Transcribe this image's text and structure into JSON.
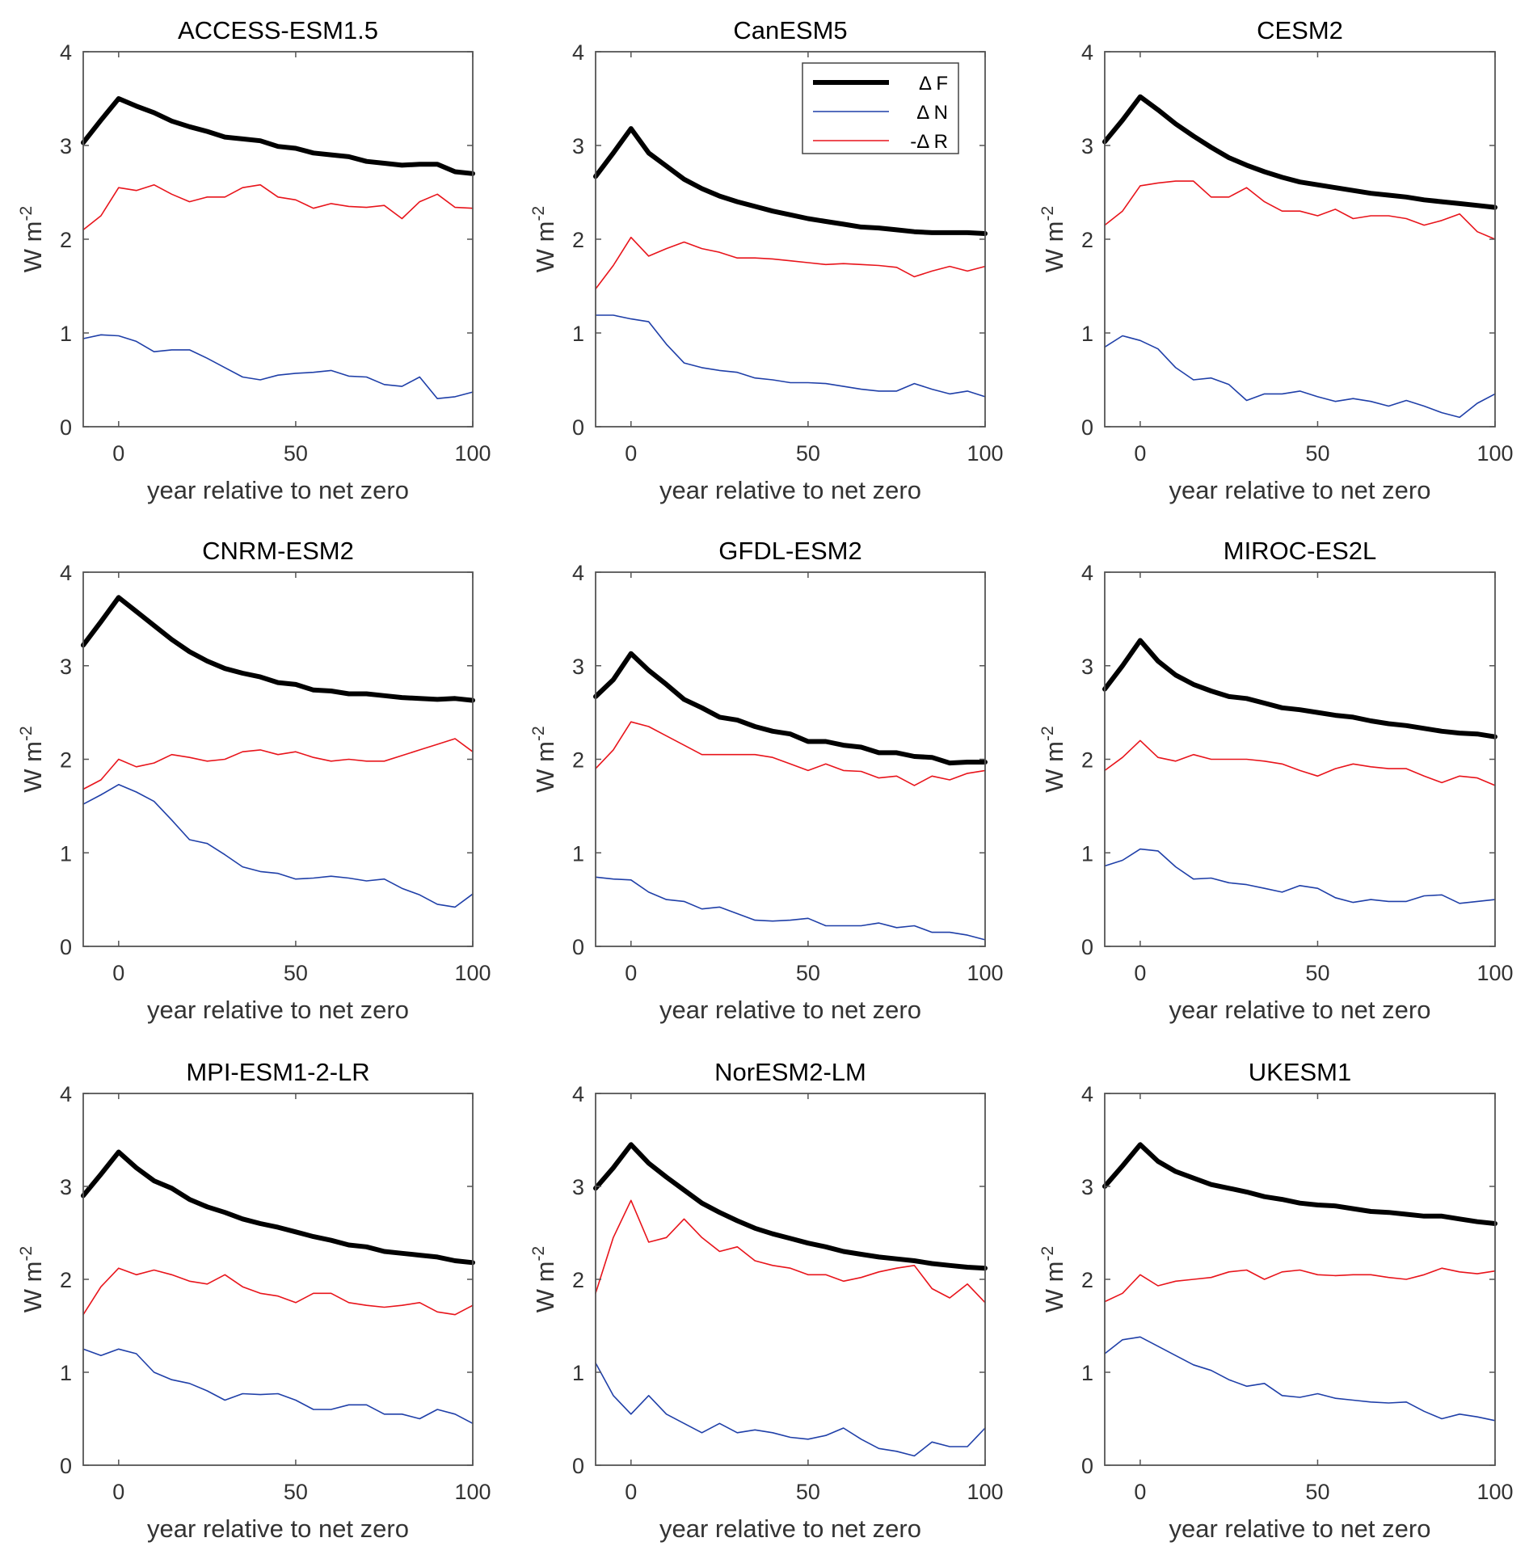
{
  "chart_data": {
    "type": "line",
    "layout": "3x3 grid of small multiples",
    "shared": {
      "xlabel": "year relative to net zero",
      "ylabel": "W m",
      "ylabel_superscript": "-2",
      "xlim": [
        -10,
        100
      ],
      "ylim": [
        0,
        4
      ],
      "xticks": [
        0,
        50,
        100
      ],
      "yticks": [
        0,
        1,
        2,
        3,
        4
      ],
      "grid": false
    },
    "legend": {
      "panel": 1,
      "placement": "top-right",
      "entries": [
        {
          "key": "F",
          "label": "Δ F",
          "color": "#000000",
          "weight": "thick"
        },
        {
          "key": "N",
          "label": "Δ N",
          "color": "#1f3fa8",
          "weight": "thin"
        },
        {
          "key": "R",
          "label": "-Δ R",
          "color": "#e8141b",
          "weight": "thin"
        }
      ]
    },
    "x": [
      -10,
      -5,
      0,
      5,
      10,
      15,
      20,
      25,
      30,
      35,
      40,
      45,
      50,
      55,
      60,
      65,
      70,
      75,
      80,
      85,
      90,
      95,
      100
    ],
    "panels": [
      {
        "title": "ACCESS-ESM1.5",
        "series": {
          "F": [
            3.03,
            3.27,
            3.5,
            3.42,
            3.35,
            3.26,
            3.2,
            3.15,
            3.09,
            3.07,
            3.05,
            2.99,
            2.97,
            2.92,
            2.9,
            2.88,
            2.83,
            2.81,
            2.79,
            2.8,
            2.8,
            2.72,
            2.7
          ],
          "N": [
            0.94,
            0.98,
            0.97,
            0.91,
            0.8,
            0.82,
            0.82,
            0.73,
            0.63,
            0.53,
            0.5,
            0.55,
            0.57,
            0.58,
            0.6,
            0.54,
            0.53,
            0.45,
            0.43,
            0.53,
            0.3,
            0.32,
            0.37
          ],
          "R": [
            2.1,
            2.25,
            2.55,
            2.52,
            2.58,
            2.48,
            2.4,
            2.45,
            2.45,
            2.55,
            2.58,
            2.45,
            2.42,
            2.33,
            2.38,
            2.35,
            2.34,
            2.36,
            2.22,
            2.4,
            2.48,
            2.34,
            2.33
          ]
        }
      },
      {
        "title": "CanESM5",
        "series": {
          "F": [
            2.67,
            2.92,
            3.18,
            2.92,
            2.78,
            2.64,
            2.54,
            2.46,
            2.4,
            2.35,
            2.3,
            2.26,
            2.22,
            2.19,
            2.16,
            2.13,
            2.12,
            2.1,
            2.08,
            2.07,
            2.07,
            2.07,
            2.06
          ],
          "N": [
            1.19,
            1.19,
            1.15,
            1.12,
            0.88,
            0.68,
            0.63,
            0.6,
            0.58,
            0.52,
            0.5,
            0.47,
            0.47,
            0.46,
            0.43,
            0.4,
            0.38,
            0.38,
            0.46,
            0.4,
            0.35,
            0.38,
            0.32
          ],
          "R": [
            1.47,
            1.72,
            2.02,
            1.82,
            1.9,
            1.97,
            1.9,
            1.86,
            1.8,
            1.8,
            1.79,
            1.77,
            1.75,
            1.73,
            1.74,
            1.73,
            1.72,
            1.7,
            1.6,
            1.66,
            1.71,
            1.66,
            1.71
          ]
        }
      },
      {
        "title": "CESM2",
        "series": {
          "F": [
            3.04,
            3.27,
            3.52,
            3.38,
            3.23,
            3.1,
            2.98,
            2.87,
            2.79,
            2.72,
            2.66,
            2.61,
            2.58,
            2.55,
            2.52,
            2.49,
            2.47,
            2.45,
            2.42,
            2.4,
            2.38,
            2.36,
            2.34
          ],
          "N": [
            0.85,
            0.97,
            0.92,
            0.83,
            0.63,
            0.5,
            0.52,
            0.45,
            0.28,
            0.35,
            0.35,
            0.38,
            0.32,
            0.27,
            0.3,
            0.27,
            0.22,
            0.28,
            0.22,
            0.15,
            0.1,
            0.25,
            0.35
          ],
          "R": [
            2.15,
            2.3,
            2.57,
            2.6,
            2.62,
            2.62,
            2.45,
            2.45,
            2.55,
            2.4,
            2.3,
            2.3,
            2.25,
            2.32,
            2.22,
            2.25,
            2.25,
            2.22,
            2.15,
            2.2,
            2.27,
            2.08,
            2.0
          ]
        }
      },
      {
        "title": "CNRM-ESM2",
        "series": {
          "F": [
            3.22,
            3.47,
            3.73,
            3.58,
            3.43,
            3.28,
            3.15,
            3.05,
            2.97,
            2.92,
            2.88,
            2.82,
            2.8,
            2.74,
            2.73,
            2.7,
            2.7,
            2.68,
            2.66,
            2.65,
            2.64,
            2.65,
            2.63
          ],
          "N": [
            1.52,
            1.62,
            1.73,
            1.65,
            1.55,
            1.35,
            1.14,
            1.1,
            0.98,
            0.85,
            0.8,
            0.78,
            0.72,
            0.73,
            0.75,
            0.73,
            0.7,
            0.72,
            0.62,
            0.55,
            0.45,
            0.42,
            0.56
          ],
          "R": [
            1.68,
            1.78,
            2.0,
            1.92,
            1.96,
            2.05,
            2.02,
            1.98,
            2.0,
            2.08,
            2.1,
            2.05,
            2.08,
            2.02,
            1.98,
            2.0,
            1.98,
            1.98,
            2.04,
            2.1,
            2.16,
            2.22,
            2.08
          ]
        }
      },
      {
        "title": "GFDL-ESM2",
        "series": {
          "F": [
            2.67,
            2.85,
            3.13,
            2.95,
            2.8,
            2.64,
            2.55,
            2.45,
            2.42,
            2.35,
            2.3,
            2.27,
            2.19,
            2.19,
            2.15,
            2.13,
            2.07,
            2.07,
            2.03,
            2.02,
            1.96,
            1.97,
            1.97
          ],
          "N": [
            0.74,
            0.72,
            0.71,
            0.58,
            0.5,
            0.48,
            0.4,
            0.42,
            0.35,
            0.28,
            0.27,
            0.28,
            0.3,
            0.22,
            0.22,
            0.22,
            0.25,
            0.2,
            0.22,
            0.15,
            0.15,
            0.12,
            0.07
          ],
          "R": [
            1.9,
            2.1,
            2.4,
            2.35,
            2.25,
            2.15,
            2.05,
            2.05,
            2.05,
            2.05,
            2.02,
            1.95,
            1.88,
            1.95,
            1.88,
            1.87,
            1.8,
            1.82,
            1.72,
            1.82,
            1.78,
            1.85,
            1.88
          ]
        }
      },
      {
        "title": "MIROC-ES2L",
        "series": {
          "F": [
            2.75,
            3.0,
            3.27,
            3.05,
            2.9,
            2.8,
            2.73,
            2.67,
            2.65,
            2.6,
            2.55,
            2.53,
            2.5,
            2.47,
            2.45,
            2.41,
            2.38,
            2.36,
            2.33,
            2.3,
            2.28,
            2.27,
            2.24
          ],
          "N": [
            0.86,
            0.92,
            1.04,
            1.02,
            0.85,
            0.72,
            0.73,
            0.68,
            0.66,
            0.62,
            0.58,
            0.65,
            0.62,
            0.52,
            0.47,
            0.5,
            0.48,
            0.48,
            0.54,
            0.55,
            0.46,
            0.48,
            0.5
          ],
          "R": [
            1.88,
            2.02,
            2.2,
            2.02,
            1.98,
            2.05,
            2.0,
            2.0,
            2.0,
            1.98,
            1.95,
            1.88,
            1.82,
            1.9,
            1.95,
            1.92,
            1.9,
            1.9,
            1.82,
            1.75,
            1.82,
            1.8,
            1.72
          ]
        }
      },
      {
        "title": "MPI-ESM1-2-LR",
        "series": {
          "F": [
            2.9,
            3.13,
            3.37,
            3.2,
            3.06,
            2.98,
            2.86,
            2.78,
            2.72,
            2.65,
            2.6,
            2.56,
            2.51,
            2.46,
            2.42,
            2.37,
            2.35,
            2.3,
            2.28,
            2.26,
            2.24,
            2.2,
            2.18
          ],
          "N": [
            1.25,
            1.18,
            1.25,
            1.2,
            1.0,
            0.92,
            0.88,
            0.8,
            0.7,
            0.77,
            0.76,
            0.77,
            0.7,
            0.6,
            0.6,
            0.65,
            0.65,
            0.55,
            0.55,
            0.5,
            0.6,
            0.55,
            0.45
          ],
          "R": [
            1.62,
            1.92,
            2.12,
            2.05,
            2.1,
            2.05,
            1.98,
            1.95,
            2.05,
            1.92,
            1.85,
            1.82,
            1.75,
            1.85,
            1.85,
            1.75,
            1.72,
            1.7,
            1.72,
            1.75,
            1.65,
            1.62,
            1.72
          ]
        }
      },
      {
        "title": "NorESM2-LM",
        "series": {
          "F": [
            2.98,
            3.2,
            3.45,
            3.25,
            3.1,
            2.96,
            2.82,
            2.72,
            2.63,
            2.55,
            2.49,
            2.44,
            2.39,
            2.35,
            2.3,
            2.27,
            2.24,
            2.22,
            2.2,
            2.17,
            2.15,
            2.13,
            2.12
          ],
          "N": [
            1.1,
            0.75,
            0.55,
            0.75,
            0.55,
            0.45,
            0.35,
            0.45,
            0.35,
            0.38,
            0.35,
            0.3,
            0.28,
            0.32,
            0.4,
            0.28,
            0.18,
            0.15,
            0.1,
            0.25,
            0.2,
            0.2,
            0.4
          ],
          "R": [
            1.85,
            2.45,
            2.85,
            2.4,
            2.45,
            2.65,
            2.45,
            2.3,
            2.35,
            2.2,
            2.15,
            2.12,
            2.05,
            2.05,
            1.98,
            2.02,
            2.08,
            2.12,
            2.15,
            1.9,
            1.8,
            1.95,
            1.75
          ]
        }
      },
      {
        "title": "UKESM1",
        "series": {
          "F": [
            3.0,
            3.22,
            3.45,
            3.27,
            3.16,
            3.09,
            3.02,
            2.98,
            2.94,
            2.89,
            2.86,
            2.82,
            2.8,
            2.79,
            2.76,
            2.73,
            2.72,
            2.7,
            2.68,
            2.68,
            2.65,
            2.62,
            2.6
          ],
          "N": [
            1.2,
            1.35,
            1.38,
            1.28,
            1.18,
            1.08,
            1.02,
            0.92,
            0.85,
            0.88,
            0.75,
            0.73,
            0.77,
            0.72,
            0.7,
            0.68,
            0.67,
            0.68,
            0.58,
            0.5,
            0.55,
            0.52,
            0.48
          ],
          "R": [
            1.76,
            1.85,
            2.05,
            1.93,
            1.98,
            2.0,
            2.02,
            2.08,
            2.1,
            2.0,
            2.08,
            2.1,
            2.05,
            2.04,
            2.05,
            2.05,
            2.02,
            2.0,
            2.05,
            2.12,
            2.08,
            2.06,
            2.09
          ]
        }
      }
    ]
  }
}
